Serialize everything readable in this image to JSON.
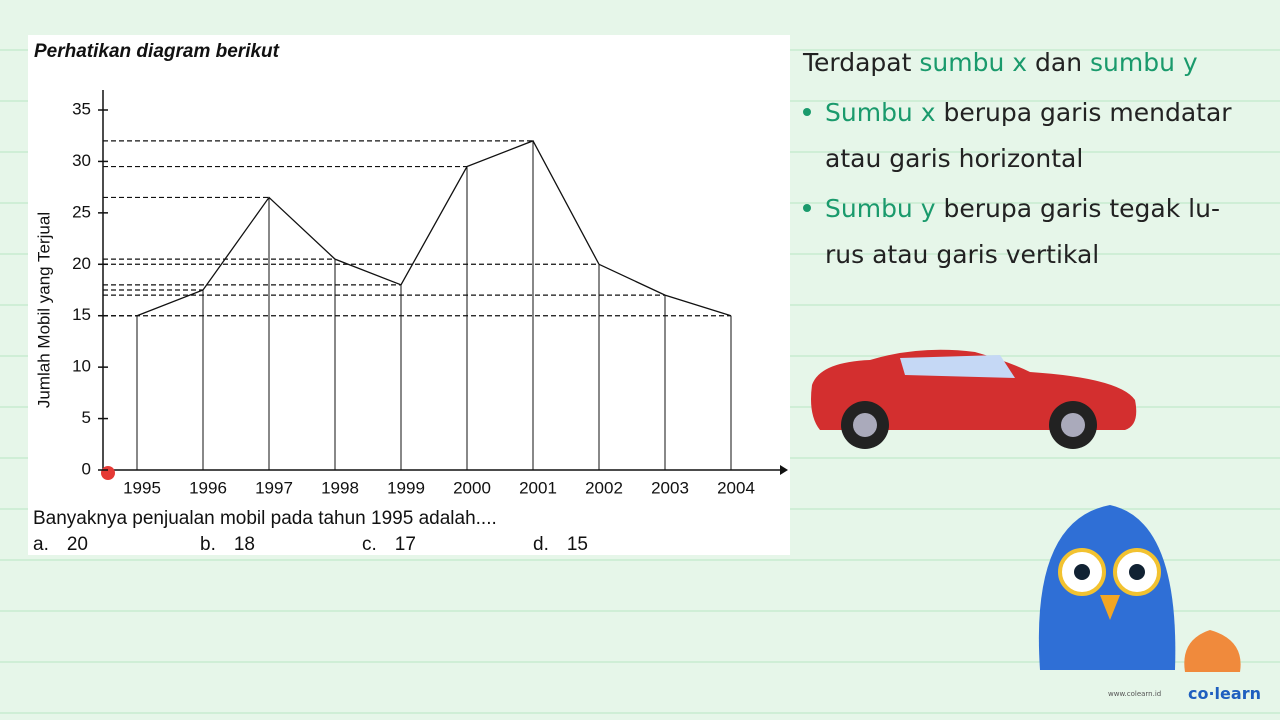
{
  "chart_data": {
    "type": "line",
    "title": "Perhatikan diagram berikut",
    "y_label": "Jumlah Mobil yang Terjual",
    "categories": [
      "1995",
      "1996",
      "1997",
      "1998",
      "1999",
      "2000",
      "2001",
      "2002",
      "2003",
      "2004"
    ],
    "values": [
      15,
      17.5,
      26.5,
      20.5,
      18,
      29.5,
      32,
      20,
      17,
      15
    ],
    "color": "#111111",
    "ylim": [
      0,
      35
    ],
    "yticks": [
      0,
      5,
      10,
      15,
      20,
      25,
      30,
      35
    ],
    "guide_lines": true
  },
  "question": {
    "text": "Banyaknya penjualan mobil pada tahun 1995 adalah....",
    "options": [
      [
        "a.",
        "20"
      ],
      [
        "b.",
        "18"
      ],
      [
        "c.",
        "17"
      ],
      [
        "d.",
        "15"
      ]
    ]
  },
  "explanation": {
    "intro": [
      "Terdapat",
      "sumbu x",
      "dan",
      "sumbu y"
    ],
    "bullets": [
      [
        "Sumbu x",
        "berupa garis mendatar atau garis horizontal"
      ],
      [
        "Sumbu y",
        "berupa garis tegak lu-rus atau garis vertikal"
      ]
    ]
  },
  "brand": {
    "logo": "co·learn",
    "url": "www.colearn.id"
  }
}
